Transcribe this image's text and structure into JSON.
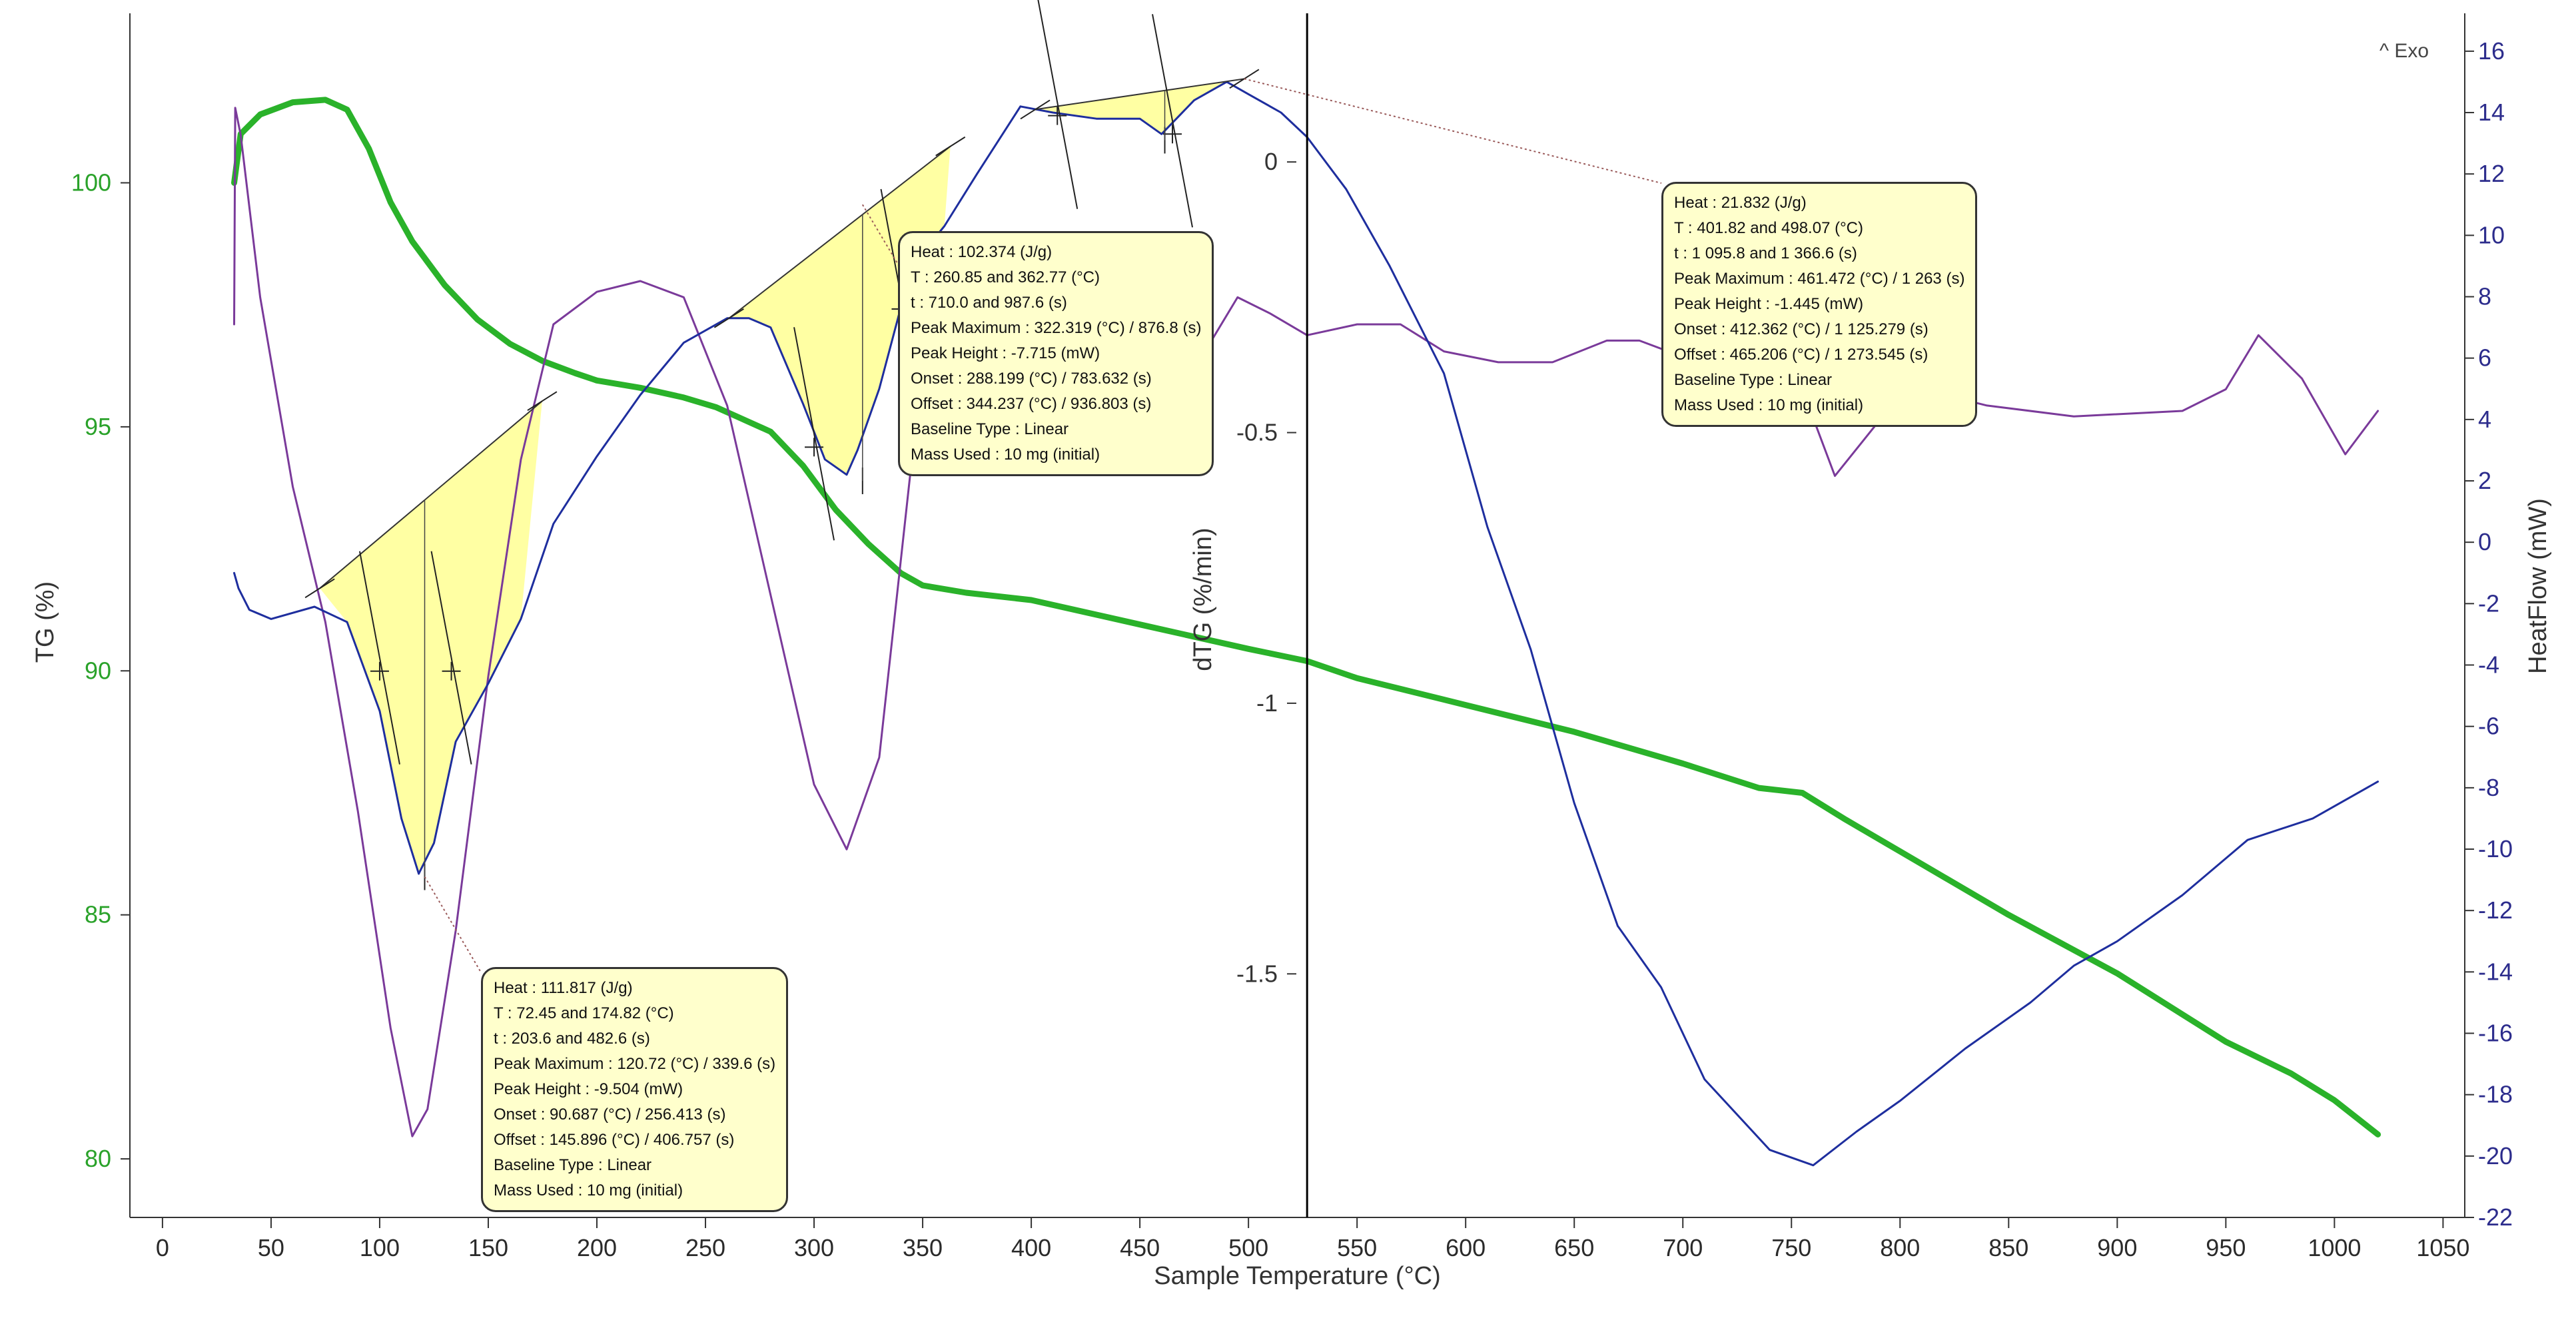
{
  "chart_data": {
    "type": "line",
    "title": "",
    "xlabel": "Sample Temperature (°C)",
    "xlim": [
      -15,
      1060
    ],
    "xticks": [
      0,
      50,
      100,
      150,
      200,
      250,
      300,
      350,
      400,
      450,
      500,
      550,
      600,
      650,
      700,
      750,
      800,
      850,
      900,
      950,
      1000,
      1050
    ],
    "axes": {
      "tg": {
        "label": "TG (%)",
        "color": "#2aa22a",
        "ylim": [
          78.8,
          103.2
        ],
        "ticks": [
          80,
          85,
          90,
          95,
          100
        ]
      },
      "dtg": {
        "label": "dTG (%/min)",
        "color": "#333333",
        "ylim": [
          -1.95,
          0.25
        ],
        "ticks": [
          0,
          -0.5,
          -1,
          -1.5
        ],
        "tick_labels": [
          "0",
          "-0.5",
          "-1",
          "-1.5"
        ]
      },
      "heatflow": {
        "label": "HeatFlow (mW)",
        "color": "#2c2c8c",
        "ylim": [
          -22,
          16.8
        ],
        "ticks": [
          16,
          14,
          12,
          10,
          8,
          6,
          4,
          2,
          0,
          -2,
          -4,
          -6,
          -8,
          -10,
          -12,
          -14,
          -16,
          -18,
          -20,
          -22
        ]
      }
    },
    "exo_label": "Exo",
    "cursor_x": 527,
    "series": [
      {
        "name": "TG",
        "axis": "tg",
        "color": "#2ab22a",
        "points": [
          [
            33,
            100
          ],
          [
            36,
            101
          ],
          [
            45,
            101.4
          ],
          [
            60,
            101.65
          ],
          [
            75,
            101.7
          ],
          [
            85,
            101.5
          ],
          [
            95,
            100.7
          ],
          [
            105,
            99.6
          ],
          [
            115,
            98.8
          ],
          [
            130,
            97.9
          ],
          [
            145,
            97.2
          ],
          [
            160,
            96.7
          ],
          [
            175,
            96.35
          ],
          [
            190,
            96.1
          ],
          [
            200,
            95.95
          ],
          [
            220,
            95.8
          ],
          [
            240,
            95.6
          ],
          [
            255,
            95.4
          ],
          [
            265,
            95.2
          ],
          [
            280,
            94.9
          ],
          [
            295,
            94.2
          ],
          [
            310,
            93.3
          ],
          [
            325,
            92.6
          ],
          [
            340,
            92.0
          ],
          [
            350,
            91.75
          ],
          [
            370,
            91.6
          ],
          [
            400,
            91.45
          ],
          [
            450,
            90.95
          ],
          [
            500,
            90.45
          ],
          [
            527,
            90.2
          ],
          [
            550,
            89.85
          ],
          [
            600,
            89.3
          ],
          [
            650,
            88.75
          ],
          [
            700,
            88.1
          ],
          [
            735,
            87.6
          ],
          [
            755,
            87.5
          ],
          [
            775,
            86.95
          ],
          [
            800,
            86.3
          ],
          [
            850,
            85.0
          ],
          [
            900,
            83.8
          ],
          [
            950,
            82.4
          ],
          [
            980,
            81.75
          ],
          [
            1000,
            81.2
          ],
          [
            1020,
            80.5
          ]
        ]
      },
      {
        "name": "dTG",
        "axis": "dtg",
        "color": "#7a3a9a",
        "points": [
          [
            33,
            -0.3
          ],
          [
            33.5,
            0.1
          ],
          [
            36,
            0.05
          ],
          [
            45,
            -0.25
          ],
          [
            60,
            -0.6
          ],
          [
            75,
            -0.85
          ],
          [
            90,
            -1.2
          ],
          [
            105,
            -1.6
          ],
          [
            115,
            -1.8
          ],
          [
            122,
            -1.75
          ],
          [
            135,
            -1.42
          ],
          [
            150,
            -0.95
          ],
          [
            165,
            -0.55
          ],
          [
            180,
            -0.3
          ],
          [
            200,
            -0.24
          ],
          [
            220,
            -0.22
          ],
          [
            240,
            -0.25
          ],
          [
            260,
            -0.45
          ],
          [
            280,
            -0.8
          ],
          [
            300,
            -1.15
          ],
          [
            315,
            -1.27
          ],
          [
            330,
            -1.1
          ],
          [
            345,
            -0.55
          ],
          [
            360,
            -0.25
          ],
          [
            375,
            -0.14
          ],
          [
            395,
            -0.2
          ],
          [
            420,
            -0.3
          ],
          [
            440,
            -0.37
          ],
          [
            460,
            -0.4
          ],
          [
            480,
            -0.35
          ],
          [
            495,
            -0.25
          ],
          [
            510,
            -0.28
          ],
          [
            527,
            -0.32
          ],
          [
            550,
            -0.3
          ],
          [
            570,
            -0.3
          ],
          [
            590,
            -0.35
          ],
          [
            615,
            -0.37
          ],
          [
            640,
            -0.37
          ],
          [
            665,
            -0.33
          ],
          [
            680,
            -0.33
          ],
          [
            700,
            -0.36
          ],
          [
            735,
            -0.22
          ],
          [
            755,
            -0.42
          ],
          [
            770,
            -0.58
          ],
          [
            790,
            -0.48
          ],
          [
            810,
            -0.42
          ],
          [
            840,
            -0.45
          ],
          [
            880,
            -0.47
          ],
          [
            930,
            -0.46
          ],
          [
            950,
            -0.42
          ],
          [
            965,
            -0.32
          ],
          [
            985,
            -0.4
          ],
          [
            1005,
            -0.54
          ],
          [
            1020,
            -0.46
          ]
        ]
      },
      {
        "name": "HeatFlow",
        "axis": "heatflow",
        "color": "#1e2e9e",
        "points": [
          [
            33,
            -1
          ],
          [
            35,
            -1.5
          ],
          [
            40,
            -2.2
          ],
          [
            50,
            -2.5
          ],
          [
            70,
            -2.1
          ],
          [
            85,
            -2.6
          ],
          [
            100,
            -5.5
          ],
          [
            110,
            -9
          ],
          [
            118,
            -10.8
          ],
          [
            125,
            -9.8
          ],
          [
            135,
            -6.5
          ],
          [
            150,
            -4.6
          ],
          [
            165,
            -2.5
          ],
          [
            180,
            0.6
          ],
          [
            200,
            2.8
          ],
          [
            220,
            4.8
          ],
          [
            240,
            6.5
          ],
          [
            260,
            7.3
          ],
          [
            270,
            7.3
          ],
          [
            280,
            7
          ],
          [
            295,
            4.5
          ],
          [
            305,
            2.7
          ],
          [
            315,
            2.2
          ],
          [
            320,
            3
          ],
          [
            330,
            5
          ],
          [
            345,
            9
          ],
          [
            360,
            10.3
          ],
          [
            375,
            12
          ],
          [
            395,
            14.2
          ],
          [
            410,
            14
          ],
          [
            430,
            13.8
          ],
          [
            450,
            13.8
          ],
          [
            460,
            13.3
          ],
          [
            475,
            14.4
          ],
          [
            490,
            15
          ],
          [
            500,
            14.6
          ],
          [
            515,
            14
          ],
          [
            527,
            13.2
          ],
          [
            545,
            11.5
          ],
          [
            565,
            9
          ],
          [
            590,
            5.5
          ],
          [
            610,
            0.5
          ],
          [
            630,
            -3.5
          ],
          [
            650,
            -8.5
          ],
          [
            670,
            -12.5
          ],
          [
            690,
            -14.5
          ],
          [
            710,
            -17.5
          ],
          [
            740,
            -19.8
          ],
          [
            760,
            -20.3
          ],
          [
            780,
            -19.2
          ],
          [
            800,
            -18.2
          ],
          [
            830,
            -16.5
          ],
          [
            860,
            -15
          ],
          [
            880,
            -13.8
          ],
          [
            900,
            -13
          ],
          [
            930,
            -11.5
          ],
          [
            960,
            -9.7
          ],
          [
            990,
            -9
          ],
          [
            1020,
            -7.8
          ]
        ]
      }
    ],
    "peaks": [
      {
        "name": "peak-1",
        "baseline": [
          [
            72.45,
            -1.5
          ],
          [
            174.82,
            4.6
          ]
        ],
        "tangent_points": [
          [
            100,
            -4.2
          ],
          [
            133,
            -4.2
          ]
        ],
        "apex": [
          120.72,
          -10.9
        ]
      },
      {
        "name": "peak-2",
        "baseline": [
          [
            260.85,
            7.3
          ],
          [
            362.77,
            12.9
          ]
        ],
        "tangent_points": [
          [
            300,
            3.1
          ],
          [
            340,
            7.6
          ]
        ],
        "apex": [
          322.319,
          2.0
        ]
      },
      {
        "name": "peak-3",
        "baseline": [
          [
            401.82,
            14.1
          ],
          [
            498.07,
            15.1
          ]
        ],
        "tangent_points": [
          [
            412,
            13.9
          ],
          [
            465,
            13.3
          ]
        ],
        "apex": [
          461.472,
          13.1
        ]
      }
    ],
    "annotations": [
      {
        "name": "annotation-peak-1",
        "lines": [
          "Heat :  111.817 (J/g)",
          "T : 72.45 and 174.82 (°C)",
          "t : 203.6 and 482.6 (s)",
          "Peak Maximum :  120.72 (°C) / 339.6 (s)",
          "Peak Height :  -9.504 (mW)",
          "Onset :  90.687 (°C) / 256.413 (s)",
          "Offset :  145.896 (°C) / 406.757 (s)",
          "Baseline Type :  Linear",
          "Mass Used :  10 mg (initial)"
        ]
      },
      {
        "name": "annotation-peak-2",
        "lines": [
          "Heat :  102.374 (J/g)",
          "T : 260.85 and 362.77 (°C)",
          "t : 710.0 and 987.6 (s)",
          "Peak Maximum :  322.319 (°C) / 876.8 (s)",
          "Peak Height :  -7.715 (mW)",
          "Onset :  288.199 (°C) / 783.632 (s)",
          "Offset :  344.237 (°C) / 936.803 (s)",
          "Baseline Type :  Linear",
          "Mass Used :  10 mg (initial)"
        ]
      },
      {
        "name": "annotation-peak-3",
        "lines": [
          "Heat :  21.832 (J/g)",
          "T : 401.82 and 498.07 (°C)",
          "t : 1 095.8 and 1 366.6 (s)",
          "Peak Maximum :  461.472 (°C) / 1 263 (s)",
          "Peak Height :  -1.445 (mW)",
          "Onset :  412.362 (°C) / 1 125.279 (s)",
          "Offset :  465.206 (°C) / 1 273.545 (s)",
          "Baseline Type :  Linear",
          "Mass Used :  10 mg (initial)"
        ]
      }
    ]
  }
}
